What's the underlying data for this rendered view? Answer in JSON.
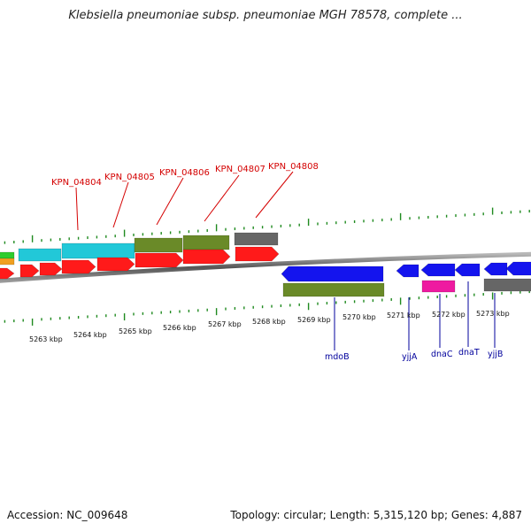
{
  "title": "Klebsiella pneumoniae subsp. pneumoniae MGH 78578, complete ...",
  "footer": {
    "accession": "Accession: NC_009648",
    "summary": "Topology: circular; Length: 5,315,120 bp; Genes: 4,887"
  },
  "colors": {
    "red_gene": "#ff1a1a",
    "blue_gene": "#1414ee",
    "cyan_gene": "#22c8d8",
    "olive_gene": "#6a8a28",
    "gray_gene": "#666666",
    "magenta_gene": "#ee1aa0",
    "tick_green": "#1f8a1f",
    "red_label": "#d40000",
    "blue_label": "#00009c"
  },
  "scale_labels": [
    "5263 kbp",
    "5264 kbp",
    "5265 kbp",
    "5266 kbp",
    "5267 kbp",
    "5268 kbp",
    "5269 kbp",
    "5270 kbp",
    "5271 kbp",
    "5272 kbp",
    "5273 kbp"
  ],
  "gene_labels_top": [
    "KPN_04804",
    "KPN_04805",
    "KPN_04806",
    "KPN_04807",
    "KPN_04808"
  ],
  "gene_labels_bottom": [
    "mdoB",
    "yjjA",
    "dnaC",
    "dnaT",
    "yjjB"
  ]
}
